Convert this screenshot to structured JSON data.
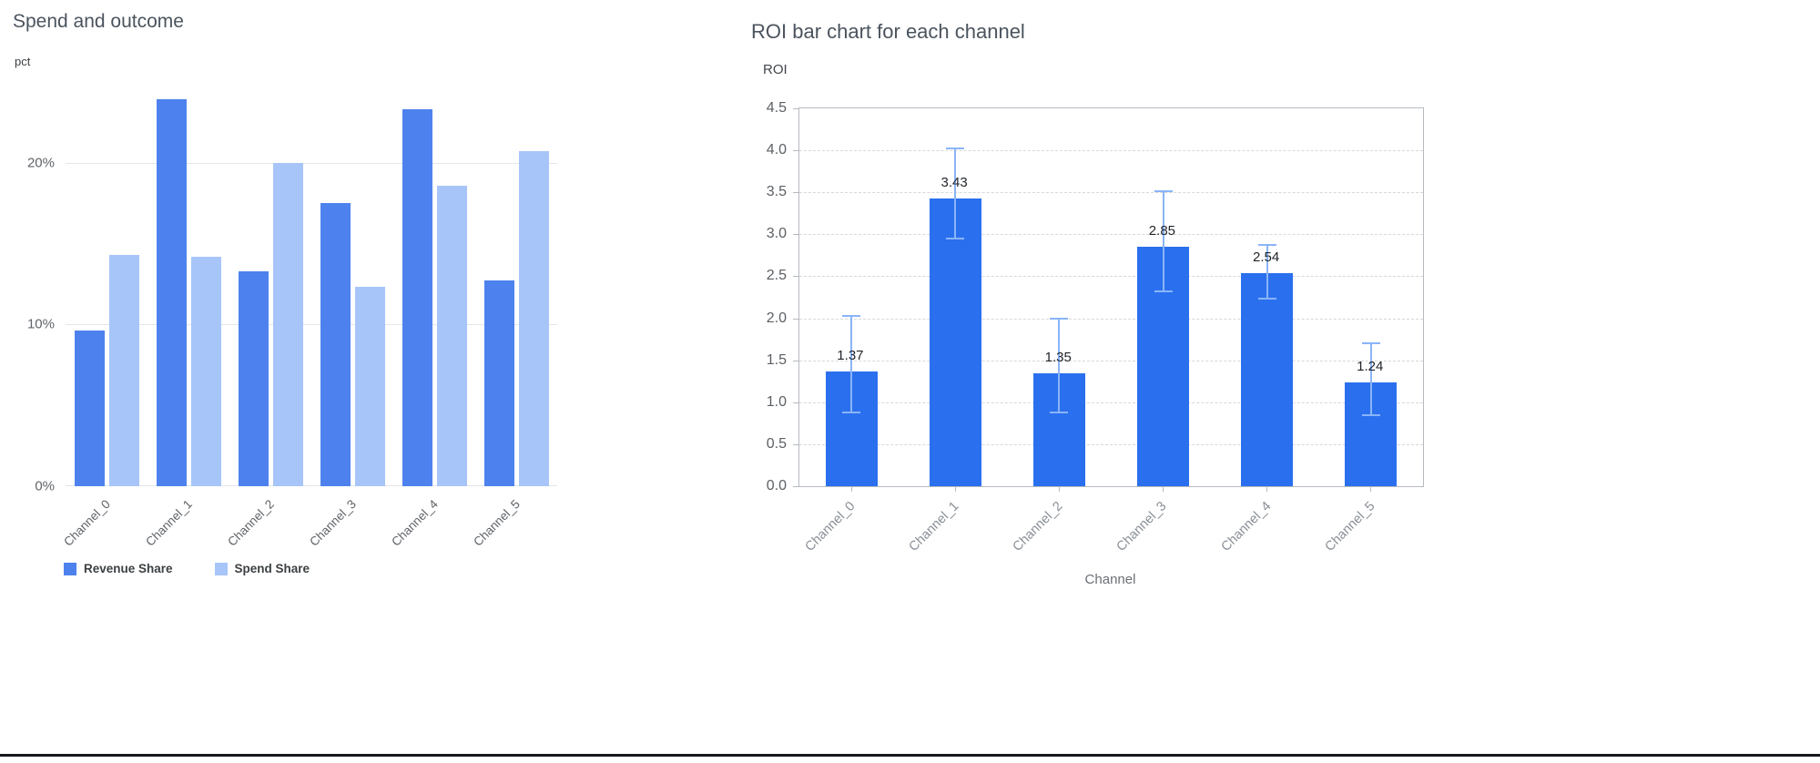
{
  "page": {
    "background": "#ffffff"
  },
  "chart_data": [
    {
      "type": "bar",
      "variant": "grouped",
      "title": "Spend and outcome",
      "ylabel": "pct",
      "xlabel": "",
      "categories": [
        "Channel_0",
        "Channel_1",
        "Channel_2",
        "Channel_3",
        "Channel_4",
        "Channel_5"
      ],
      "series": [
        {
          "name": "Revenue Share",
          "color": "#4d82ee",
          "values": [
            9.6,
            23.9,
            13.3,
            17.5,
            23.3,
            12.7
          ]
        },
        {
          "name": "Spend Share",
          "color": "#a7c5f8",
          "values": [
            14.3,
            14.2,
            20.0,
            12.3,
            18.6,
            20.7
          ]
        }
      ],
      "unit": "%",
      "yticks": [
        0,
        10,
        20
      ],
      "ytick_labels": [
        "0%",
        "10%",
        "20%"
      ],
      "ylim": [
        0,
        24.2
      ],
      "grid": "solid",
      "legend_position": "bottom"
    },
    {
      "type": "bar",
      "variant": "error-bars",
      "title": "ROI bar chart for each channel",
      "ylabel": "ROI",
      "xlabel": "Channel",
      "categories": [
        "Channel_0",
        "Channel_1",
        "Channel_2",
        "Channel_3",
        "Channel_4",
        "Channel_5"
      ],
      "values": [
        1.37,
        3.43,
        1.35,
        2.85,
        2.54,
        1.24
      ],
      "value_labels": [
        "1.37",
        "3.43",
        "1.35",
        "2.85",
        "2.54",
        "1.24"
      ],
      "error_low": [
        0.88,
        2.95,
        0.88,
        2.32,
        2.23,
        0.85
      ],
      "error_high": [
        2.03,
        4.02,
        1.99,
        3.51,
        2.87,
        1.7
      ],
      "bar_color": "#2a70ee",
      "error_color": "#8ab4f8",
      "yticks": [
        0,
        0.5,
        1.0,
        1.5,
        2.0,
        2.5,
        3.0,
        3.5,
        4.0,
        4.5
      ],
      "ytick_labels": [
        "0.0",
        "0.5",
        "1.0",
        "1.5",
        "2.0",
        "2.5",
        "3.0",
        "3.5",
        "4.0",
        "4.5"
      ],
      "ylim": [
        0,
        4.5
      ],
      "grid": "dashed",
      "legend_position": "none"
    }
  ]
}
